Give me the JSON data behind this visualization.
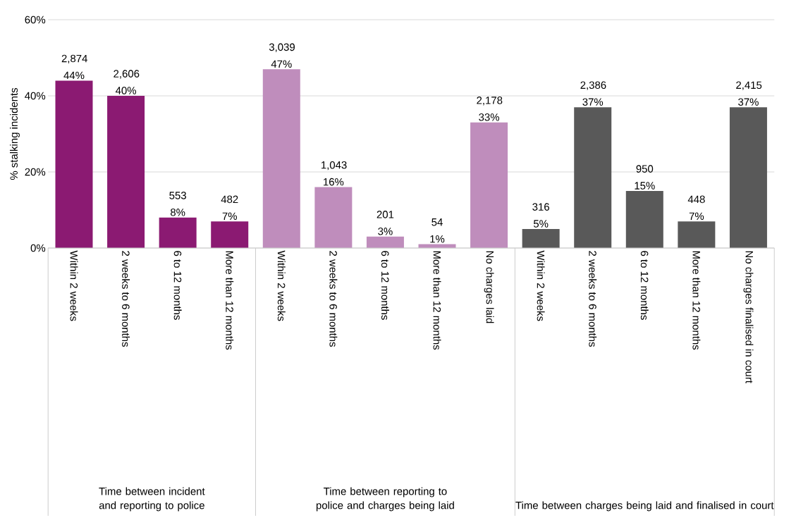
{
  "chart_data": {
    "type": "bar",
    "ylabel": "% stalking incidents",
    "categories": [
      "Within 2 weeks",
      "2 weeks to 6 months",
      "6 to 12 months",
      "More than 12 months",
      "Within 2 weeks",
      "2 weeks to 6 months",
      "6 to 12 months",
      "More than 12 months",
      "No charges laid",
      "Within 2 weeks",
      "2 weeks to 6 months",
      "6 to 12 months",
      "More than 12 months",
      "No charges finalised in court"
    ],
    "values": [
      44,
      40,
      8,
      7,
      47,
      16,
      3,
      1,
      33,
      5,
      37,
      15,
      7,
      37
    ],
    "value_labels": [
      "2,874 44%",
      "2,606 40%",
      "553 8%",
      "482 7%",
      "3,039 47%",
      "1,043 16%",
      "201 3%",
      "54 1%",
      "2,178 33%",
      "316 5%",
      "2,386 37%",
      "950 15%",
      "448 7%",
      "2,415 37%"
    ],
    "colors": [
      "#8b1a72",
      "#8b1a72",
      "#8b1a72",
      "#8b1a72",
      "#bf8dbc",
      "#bf8dbc",
      "#bf8dbc",
      "#bf8dbc",
      "#bf8dbc",
      "#595959",
      "#595959",
      "#595959",
      "#595959",
      "#595959"
    ],
    "annotations": [
      "Time between incident and reporting to police",
      "Time between reporting to police and charges being laid",
      "Time between charges being laid and finalised in court"
    ],
    "ylim": [
      0,
      60
    ],
    "yticks": [
      {
        "value": 0,
        "label": "0%"
      },
      {
        "value": 20,
        "label": "20%"
      },
      {
        "value": 40,
        "label": "40%"
      },
      {
        "value": 60,
        "label": "60%"
      }
    ],
    "grid": "y"
  }
}
